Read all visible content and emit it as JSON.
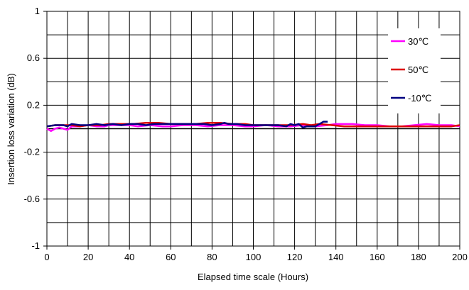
{
  "chart_data": {
    "type": "line",
    "title": "",
    "xlabel": "Elapsed time scale (Hours)",
    "ylabel": "Insertion loss variation (dB)",
    "xlim": [
      0,
      200
    ],
    "ylim": [
      -1,
      1
    ],
    "x_ticks": [
      0,
      20,
      40,
      60,
      80,
      100,
      120,
      140,
      160,
      180,
      200
    ],
    "y_ticks": [
      1,
      0.6,
      0.2,
      -0.2,
      -0.6,
      -1
    ],
    "y_tick_labels": [
      "1",
      "0.6",
      "0.2",
      "-0.2",
      "-0.6",
      "-1"
    ],
    "grid": "vertical every 10 h, horizontal every 0.2 dB",
    "legend_position": "top-right",
    "series": [
      {
        "name": "30℃",
        "color": "#ff00ff",
        "points": [
          [
            0,
            0.0
          ],
          [
            2,
            -0.02
          ],
          [
            4,
            0.0
          ],
          [
            6,
            0.01
          ],
          [
            8,
            0.0
          ],
          [
            10,
            -0.01
          ],
          [
            12,
            0.02
          ],
          [
            16,
            0.02
          ],
          [
            20,
            0.03
          ],
          [
            24,
            0.02
          ],
          [
            28,
            0.02
          ],
          [
            30,
            0.03
          ],
          [
            36,
            0.03
          ],
          [
            40,
            0.03
          ],
          [
            44,
            0.02
          ],
          [
            50,
            0.03
          ],
          [
            56,
            0.02
          ],
          [
            60,
            0.02
          ],
          [
            66,
            0.03
          ],
          [
            72,
            0.03
          ],
          [
            78,
            0.02
          ],
          [
            84,
            0.03
          ],
          [
            90,
            0.03
          ],
          [
            96,
            0.02
          ],
          [
            100,
            0.02
          ],
          [
            106,
            0.03
          ],
          [
            112,
            0.02
          ],
          [
            118,
            0.02
          ],
          [
            124,
            0.03
          ],
          [
            130,
            0.02
          ],
          [
            136,
            0.03
          ],
          [
            140,
            0.04
          ],
          [
            148,
            0.04
          ],
          [
            154,
            0.03
          ],
          [
            160,
            0.03
          ],
          [
            166,
            0.02
          ],
          [
            172,
            0.02
          ],
          [
            178,
            0.03
          ],
          [
            184,
            0.04
          ],
          [
            190,
            0.03
          ],
          [
            196,
            0.03
          ],
          [
            200,
            0.02
          ]
        ]
      },
      {
        "name": "50℃",
        "color": "#dd0000",
        "points": [
          [
            0,
            0.02
          ],
          [
            4,
            0.03
          ],
          [
            8,
            0.03
          ],
          [
            12,
            0.03
          ],
          [
            16,
            0.02
          ],
          [
            20,
            0.03
          ],
          [
            26,
            0.03
          ],
          [
            30,
            0.04
          ],
          [
            36,
            0.04
          ],
          [
            42,
            0.04
          ],
          [
            48,
            0.05
          ],
          [
            54,
            0.05
          ],
          [
            60,
            0.04
          ],
          [
            66,
            0.04
          ],
          [
            72,
            0.04
          ],
          [
            78,
            0.05
          ],
          [
            84,
            0.05
          ],
          [
            90,
            0.04
          ],
          [
            96,
            0.04
          ],
          [
            100,
            0.03
          ],
          [
            106,
            0.03
          ],
          [
            112,
            0.03
          ],
          [
            118,
            0.03
          ],
          [
            124,
            0.04
          ],
          [
            128,
            0.03
          ],
          [
            132,
            0.04
          ],
          [
            138,
            0.03
          ],
          [
            144,
            0.02
          ],
          [
            150,
            0.02
          ],
          [
            156,
            0.02
          ],
          [
            162,
            0.02
          ],
          [
            168,
            0.02
          ],
          [
            174,
            0.02
          ],
          [
            180,
            0.02
          ],
          [
            186,
            0.02
          ],
          [
            192,
            0.02
          ],
          [
            196,
            0.02
          ],
          [
            200,
            0.03
          ]
        ]
      },
      {
        "name": "-10℃",
        "color": "#000080",
        "points": [
          [
            0,
            0.02
          ],
          [
            4,
            0.03
          ],
          [
            8,
            0.03
          ],
          [
            10,
            0.02
          ],
          [
            12,
            0.04
          ],
          [
            16,
            0.03
          ],
          [
            20,
            0.03
          ],
          [
            24,
            0.04
          ],
          [
            28,
            0.03
          ],
          [
            32,
            0.04
          ],
          [
            36,
            0.03
          ],
          [
            40,
            0.04
          ],
          [
            44,
            0.04
          ],
          [
            48,
            0.03
          ],
          [
            52,
            0.04
          ],
          [
            56,
            0.04
          ],
          [
            60,
            0.04
          ],
          [
            64,
            0.04
          ],
          [
            68,
            0.04
          ],
          [
            72,
            0.04
          ],
          [
            76,
            0.04
          ],
          [
            80,
            0.03
          ],
          [
            84,
            0.04
          ],
          [
            86,
            0.05
          ],
          [
            88,
            0.04
          ],
          [
            92,
            0.04
          ],
          [
            96,
            0.03
          ],
          [
            100,
            0.03
          ],
          [
            104,
            0.03
          ],
          [
            108,
            0.03
          ],
          [
            112,
            0.03
          ],
          [
            116,
            0.02
          ],
          [
            118,
            0.04
          ],
          [
            120,
            0.03
          ],
          [
            122,
            0.04
          ],
          [
            124,
            0.01
          ],
          [
            126,
            0.02
          ],
          [
            130,
            0.02
          ],
          [
            132,
            0.04
          ],
          [
            134,
            0.06
          ],
          [
            136,
            0.06
          ]
        ]
      }
    ]
  }
}
